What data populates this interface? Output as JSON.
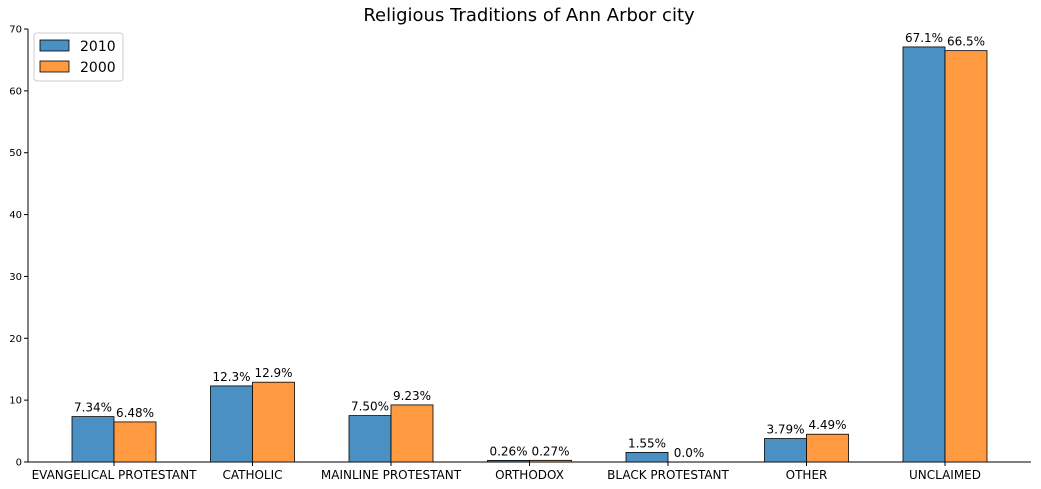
{
  "chart_data": {
    "type": "bar",
    "title": "Religious Traditions of Ann Arbor city",
    "xlabel": "",
    "ylabel": "",
    "categories": [
      "EVANGELICAL PROTESTANT",
      "CATHOLIC",
      "MAINLINE PROTESTANT",
      "ORTHODOX",
      "BLACK PROTESTANT",
      "OTHER",
      "UNCLAIMED"
    ],
    "series": [
      {
        "name": "2010",
        "color": "#4a90c2",
        "values": [
          7.34,
          12.3,
          7.5,
          0.26,
          1.55,
          3.79,
          67.1
        ],
        "labels": [
          "7.34%",
          "12.3%",
          "7.50%",
          "0.26%",
          "1.55%",
          "3.79%",
          "67.1%"
        ]
      },
      {
        "name": "2000",
        "color": "#ff9a40",
        "values": [
          6.48,
          12.9,
          9.23,
          0.27,
          0.0,
          4.49,
          66.5
        ],
        "labels": [
          "6.48%",
          "12.9%",
          "9.23%",
          "0.27%",
          "0.0%",
          "4.49%",
          "66.5%"
        ]
      }
    ],
    "ylim": [
      0,
      70
    ],
    "yticks": [
      "0",
      "10",
      "20",
      "30",
      "40",
      "50",
      "60",
      "70"
    ],
    "grid": false,
    "legend_position": "top-left"
  }
}
